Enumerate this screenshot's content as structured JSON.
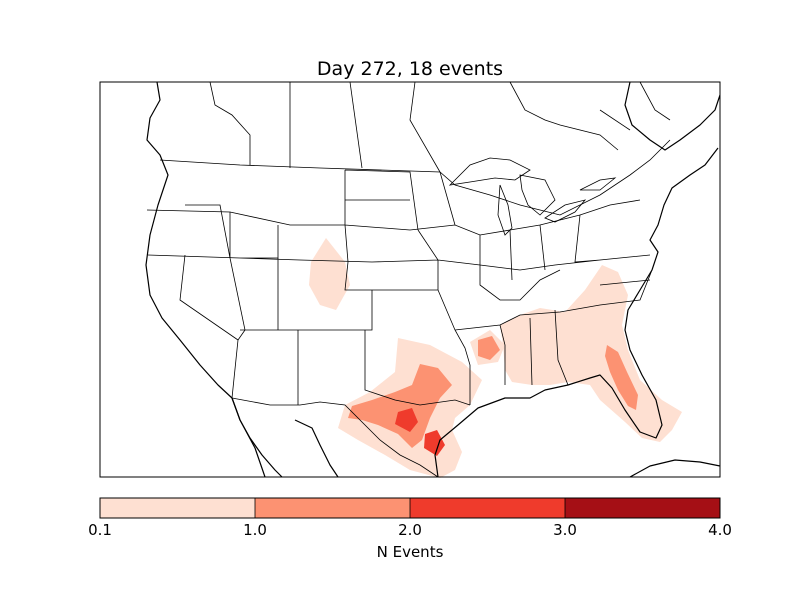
{
  "title": "Day 272, 18 events",
  "colorbar": {
    "label": "N Events",
    "ticks": [
      "0.1",
      "1.0",
      "2.0",
      "3.0",
      "4.0"
    ],
    "colors": [
      "#fee0d2",
      "#fc9272",
      "#ef3b2c",
      "#cb181d",
      "#a50f15"
    ]
  },
  "regions": [
    {
      "name": "eastern colorado",
      "level": 1
    },
    {
      "name": "central texas",
      "level": 2
    },
    {
      "name": "south texas",
      "level": 3
    },
    {
      "name": "texas gulf coast",
      "level": 3
    },
    {
      "name": "northeast louisiana",
      "level": 2
    },
    {
      "name": "central florida",
      "level": 2
    },
    {
      "name": "southeast states",
      "level": 1
    }
  ]
}
